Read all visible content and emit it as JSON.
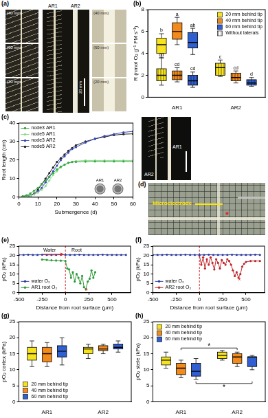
{
  "photo_a": {
    "panel": "(a)",
    "left_labels": [
      "(40 mm)",
      "(60 mm)",
      "(20 mm)"
    ],
    "center_labels": [
      "AR1",
      "AR2"
    ],
    "scale_bar": "20 mm",
    "right_labels": [
      "(40 mm)",
      "(60 mm)",
      "(20 mm)"
    ]
  },
  "photo_c": {
    "labels": [
      "AR1",
      "AR2"
    ],
    "inset_labels": [
      "AR1",
      "AR2"
    ]
  },
  "photo_d": {
    "panel": "(d)",
    "label": "Microelectrode",
    "annotation": "*"
  },
  "chart_data": [
    {
      "panel": "(b)",
      "type": "box",
      "ylabel": "R (nmol O₂ g⁻¹ FM s⁻¹)",
      "categories": [
        "AR1",
        "AR2"
      ],
      "ylim": [
        0,
        8
      ],
      "yticks": [
        0,
        2,
        4,
        6,
        8
      ],
      "legend": "top-right",
      "series": [
        {
          "name": "20 mm behind tip",
          "color": "#f6e21e"
        },
        {
          "name": "40 mm behind tip",
          "color": "#f28a1c"
        },
        {
          "name": "60 mm behind tip",
          "color": "#2f5fd0"
        },
        {
          "name": "Without laterals",
          "color": "#ffffff"
        }
      ],
      "boxes": [
        {
          "category": "AR1",
          "series": "20 mm behind tip",
          "min": 3.6,
          "q1": 4.0,
          "median": 4.8,
          "q3": 5.4,
          "max": 5.8,
          "letter": "b"
        },
        {
          "category": "AR1",
          "series": "40 mm behind tip",
          "min": 4.8,
          "q1": 5.3,
          "median": 6.0,
          "q3": 6.8,
          "max": 7.3,
          "letter": "a"
        },
        {
          "category": "AR1",
          "series": "60 mm behind tip",
          "min": 3.9,
          "q1": 4.5,
          "median": 5.0,
          "q3": 5.9,
          "max": 6.3,
          "letter": "ab"
        },
        {
          "category": "AR1",
          "series": "20 mm behind tip",
          "subset": "Without laterals",
          "min": 1.1,
          "q1": 1.5,
          "median": 2.0,
          "q3": 2.6,
          "max": 3.6,
          "letter": "cd"
        },
        {
          "category": "AR1",
          "series": "40 mm behind tip",
          "subset": "Without laterals",
          "min": 1.4,
          "q1": 1.6,
          "median": 2.0,
          "q3": 2.4,
          "max": 2.7,
          "letter": "cd"
        },
        {
          "category": "AR1",
          "series": "60 mm behind tip",
          "subset": "Without laterals",
          "min": 0.9,
          "q1": 1.1,
          "median": 1.5,
          "q3": 2.0,
          "max": 2.3,
          "letter": "cd"
        },
        {
          "category": "AR2",
          "series": "20 mm behind tip",
          "subset": "Without laterals",
          "min": 1.9,
          "q1": 2.0,
          "median": 2.7,
          "q3": 3.1,
          "max": 3.4,
          "letter": "c"
        },
        {
          "category": "AR2",
          "series": "40 mm behind tip",
          "subset": "Without laterals",
          "min": 1.3,
          "q1": 1.5,
          "median": 1.8,
          "q3": 2.2,
          "max": 2.4,
          "letter": "cd"
        },
        {
          "category": "AR2",
          "series": "60 mm behind tip",
          "subset": "Without laterals",
          "min": 1.0,
          "q1": 1.1,
          "median": 1.3,
          "q3": 1.6,
          "max": 1.8,
          "letter": "d"
        }
      ]
    },
    {
      "panel": "(c)",
      "type": "line",
      "xlabel": "Submergence (d)",
      "ylabel": "Root length (cm)",
      "xlim": [
        0,
        60
      ],
      "xticks": [
        0,
        10,
        20,
        30,
        40,
        50,
        60
      ],
      "ylim": [
        0,
        40
      ],
      "yticks": [
        0,
        10,
        20,
        30,
        40
      ],
      "legend": "top-left",
      "series": [
        {
          "name": "node3 AR1",
          "color": "#35a845",
          "marker": "circle",
          "x": [
            2,
            4,
            6,
            8,
            10,
            12,
            14,
            16,
            18,
            20,
            22,
            24,
            26,
            28,
            30,
            35,
            40,
            45,
            50,
            55,
            60
          ],
          "values": [
            0.5,
            1,
            2,
            3.5,
            5,
            7,
            9,
            11,
            13,
            15,
            16.5,
            17.5,
            18.5,
            19,
            19,
            19.2,
            19.3,
            19.3,
            19.3,
            19.3,
            19.3
          ]
        },
        {
          "name": "node5 AR1",
          "color": "#8ddc8a",
          "marker": "circle",
          "x": [
            2,
            4,
            6,
            8,
            10,
            12,
            14,
            16,
            18,
            20,
            22,
            24,
            26,
            28,
            30,
            35,
            40,
            45,
            50,
            55,
            60
          ],
          "values": [
            0.2,
            0.4,
            0.8,
            1.5,
            2.5,
            4,
            6,
            9,
            12,
            14,
            16,
            17.5,
            18.5,
            19,
            19.5,
            19.8,
            19.8,
            19.8,
            19.8,
            19.8,
            19.8
          ]
        },
        {
          "name": "node3 AR2",
          "color": "#3447b8",
          "marker": "circle",
          "x": [
            2,
            4,
            6,
            8,
            10,
            12,
            14,
            16,
            18,
            20,
            22,
            24,
            26,
            28,
            30,
            35,
            40,
            45,
            50,
            55,
            60
          ],
          "values": [
            0,
            0.3,
            0.8,
            1.5,
            3,
            5,
            8,
            11,
            14,
            17,
            20,
            22,
            24,
            26,
            27,
            29.5,
            31.5,
            33,
            34,
            35,
            35.5
          ]
        },
        {
          "name": "node5 AR2",
          "color": "#222222",
          "marker": "circle",
          "x": [
            2,
            4,
            6,
            8,
            10,
            12,
            14,
            16,
            18,
            20,
            22,
            24,
            26,
            28,
            30,
            35,
            40,
            45,
            50,
            55,
            60
          ],
          "values": [
            0.3,
            0.5,
            1,
            2,
            4,
            7,
            10,
            13,
            16,
            19,
            21,
            23,
            25,
            26.5,
            28,
            30,
            31.5,
            32.5,
            33.5,
            34,
            34.2
          ]
        }
      ]
    },
    {
      "panel": "(e)",
      "type": "line",
      "xlabel": "Distance from root surface (µm)",
      "ylabel": "pO₂ (kPa)",
      "xlim": [
        -500,
        700
      ],
      "xticks": [
        -500,
        -250,
        0,
        250,
        500
      ],
      "ylim": [
        0,
        25
      ],
      "yticks": [
        0,
        5,
        10,
        15,
        20,
        25
      ],
      "legend": "bottom-left",
      "reference_line": {
        "x": 0,
        "color": "#d62728",
        "line_style": "dashed"
      },
      "annotations": [
        {
          "text": "Water",
          "x": -170,
          "y": 22.8,
          "color": "#000000",
          "arrow": "right"
        },
        {
          "text": "Root",
          "x": 120,
          "y": 22.8,
          "color": "#000000"
        },
        {
          "text": "*",
          "x": 225,
          "y": 0.8,
          "color": "#d62728"
        }
      ],
      "series": [
        {
          "name": "water O₂",
          "color": "#2b3a9e",
          "marker": "circle",
          "x": [
            -500,
            -450,
            -400,
            -350,
            -300,
            -250,
            -200,
            -150,
            -100,
            -50,
            0,
            50,
            100,
            150,
            200,
            250,
            300,
            350,
            400,
            450,
            500,
            550,
            600,
            650
          ],
          "values": [
            20.3,
            20.3,
            20.4,
            20.3,
            20.3,
            20.4,
            20.3,
            20.3,
            20.3,
            20.4,
            20.3,
            20.3,
            20.3,
            20.4,
            20.3,
            20.3,
            20.3,
            20.3,
            20.4,
            20.3,
            20.3,
            20.3,
            20.3,
            20.3
          ]
        },
        {
          "name": "AR1 root O₂",
          "color": "#2e9a3a",
          "marker": "circle",
          "x": [
            -250,
            -200,
            -150,
            -100,
            -50,
            0,
            20,
            40,
            60,
            80,
            100,
            120,
            140,
            160,
            180,
            200,
            220,
            240,
            260,
            280,
            300,
            320
          ],
          "values": [
            17.8,
            17.6,
            17.4,
            17.3,
            17.2,
            17,
            13,
            12.5,
            8,
            11,
            6,
            10,
            8,
            5,
            9,
            3,
            2,
            6,
            7.5,
            12,
            8,
            11
          ]
        }
      ]
    },
    {
      "panel": "(f)",
      "type": "line",
      "xlabel": "Distance from root surface (µm)",
      "ylabel": "pO₂ (kPa)",
      "xlim": [
        -500,
        700
      ],
      "xticks": [
        -500,
        -250,
        0,
        250,
        500
      ],
      "ylim": [
        0,
        25
      ],
      "yticks": [
        0,
        5,
        10,
        15,
        20,
        25
      ],
      "legend": "bottom-left",
      "reference_line": {
        "x": 0,
        "color": "#d62728",
        "line_style": "dashed"
      },
      "annotations": [
        {
          "text": "*",
          "x": 430,
          "y": 6.2,
          "color": "#d62728"
        }
      ],
      "series": [
        {
          "name": "water O₂",
          "color": "#2b3a9e",
          "marker": "circle",
          "x": [
            -500,
            -450,
            -400,
            -350,
            -300,
            -250,
            -200,
            -150,
            -100,
            -50,
            0,
            50,
            100,
            150,
            200,
            250,
            300,
            350,
            400,
            450,
            500,
            550,
            600,
            650
          ],
          "values": [
            20.3,
            20.3,
            20.3,
            20.4,
            20.3,
            20.3,
            20.3,
            20.4,
            20.3,
            20.3,
            20.3,
            20.3,
            20.4,
            20.3,
            20.3,
            20.3,
            20.3,
            20.4,
            20.3,
            20.3,
            20.3,
            20.3,
            20.4,
            20.3
          ]
        },
        {
          "name": "AR2 root O₂",
          "color": "#c0282d",
          "marker": "circle",
          "x": [
            0,
            20,
            40,
            60,
            80,
            100,
            120,
            140,
            160,
            180,
            200,
            220,
            240,
            260,
            280,
            300,
            320,
            340,
            360,
            380,
            400,
            420,
            440,
            460,
            480,
            500,
            550,
            600,
            650
          ],
          "values": [
            20,
            15,
            19,
            13,
            18,
            15,
            19,
            16,
            12.5,
            18,
            16,
            13,
            17.5,
            16,
            15,
            18,
            17,
            15,
            12,
            9,
            11,
            8,
            10,
            14,
            15.5,
            16.5,
            17,
            17,
            17
          ]
        }
      ]
    },
    {
      "panel": "(g)",
      "type": "box",
      "ylabel": "pO₂ cortex (kPa)",
      "categories": [
        "AR1",
        "AR2"
      ],
      "ylim": [
        0,
        25
      ],
      "yticks": [
        0,
        5,
        10,
        15,
        20,
        25
      ],
      "legend": "bottom-left",
      "series": [
        {
          "name": "20 mm behind tip",
          "color": "#f6e21e"
        },
        {
          "name": "40 mm behind tip",
          "color": "#f28a1c"
        },
        {
          "name": "60 mm behind tip",
          "color": "#2f5fd0"
        }
      ],
      "boxes": [
        {
          "category": "AR1",
          "series": "20 mm behind tip",
          "min": 11,
          "q1": 13,
          "median": 15,
          "q3": 17,
          "max": 19
        },
        {
          "category": "AR1",
          "series": "40 mm behind tip",
          "min": 11,
          "q1": 12.5,
          "median": 15,
          "q3": 17,
          "max": 18.5
        },
        {
          "category": "AR1",
          "series": "60 mm behind tip",
          "min": 11.5,
          "q1": 14,
          "median": 15.8,
          "q3": 17.5,
          "max": 20
        },
        {
          "category": "AR2",
          "series": "20 mm behind tip",
          "min": 13.5,
          "q1": 15,
          "median": 16.5,
          "q3": 17,
          "max": 18
        },
        {
          "category": "AR2",
          "series": "40 mm behind tip",
          "min": 15,
          "q1": 16,
          "median": 16.5,
          "q3": 17.5,
          "max": 18
        },
        {
          "category": "AR2",
          "series": "60 mm behind tip",
          "min": 15.5,
          "q1": 16.5,
          "median": 17,
          "q3": 18,
          "max": 19
        }
      ]
    },
    {
      "panel": "(h)",
      "type": "box",
      "ylabel": "pO₂ stele (kPa)",
      "categories": [
        "AR1",
        "AR2"
      ],
      "ylim": [
        0,
        25
      ],
      "yticks": [
        0,
        5,
        10,
        15,
        20,
        25
      ],
      "legend": "top-left",
      "series": [
        {
          "name": "20 mm behind tip",
          "color": "#f6e21e"
        },
        {
          "name": "40 mm behind tip",
          "color": "#f28a1c"
        },
        {
          "name": "60 mm behind tip",
          "color": "#2f5fd0"
        }
      ],
      "boxes": [
        {
          "category": "AR1",
          "series": "20 mm behind tip",
          "min": 10.5,
          "q1": 11.5,
          "median": 13,
          "q3": 14,
          "max": 15.5
        },
        {
          "category": "AR1",
          "series": "40 mm behind tip",
          "min": 7.5,
          "q1": 8.5,
          "median": 10.5,
          "q3": 12,
          "max": 13
        },
        {
          "category": "AR1",
          "series": "60 mm behind tip",
          "min": 7,
          "q1": 8,
          "median": 9.5,
          "q3": 12,
          "max": 13.5
        },
        {
          "category": "AR2",
          "series": "20 mm behind tip",
          "min": 13,
          "q1": 13.5,
          "median": 14.5,
          "q3": 15.5,
          "max": 16
        },
        {
          "category": "AR2",
          "series": "40 mm behind tip",
          "min": 11,
          "q1": 12,
          "median": 14,
          "q3": 15,
          "max": 15.5
        },
        {
          "category": "AR2",
          "series": "60 mm behind tip",
          "min": 10,
          "q1": 11,
          "median": 14,
          "q3": 14,
          "max": 14.5
        }
      ],
      "brackets": [
        {
          "label": "*",
          "categories": [
            "AR1",
            "AR2"
          ],
          "series": "40 mm behind tip",
          "side": "top"
        },
        {
          "label": "*",
          "categories": [
            "AR1",
            "AR2"
          ],
          "series": "60 mm behind tip",
          "side": "bottom"
        }
      ]
    }
  ]
}
